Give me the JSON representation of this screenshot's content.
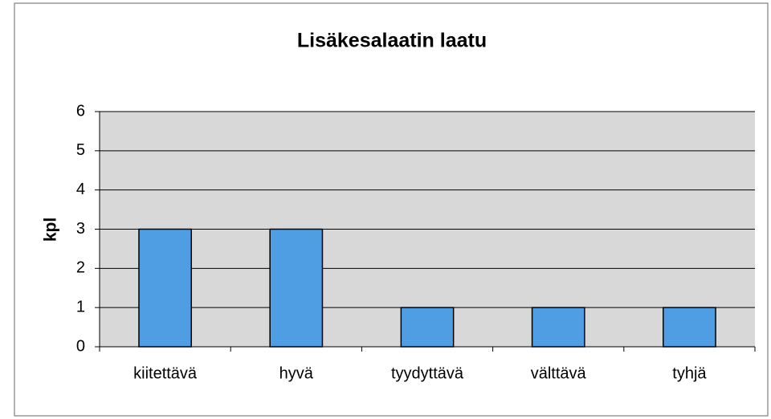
{
  "chart_data": {
    "type": "bar",
    "title": "Lisäkesalaatin laatu",
    "y_label": "kpl",
    "categories": [
      "kiitettävä",
      "hyvä",
      "tyydyttävä",
      "välttävä",
      "tyhjä"
    ],
    "values": [
      3,
      3,
      1,
      1,
      1
    ],
    "color": "#4f9de2",
    "ylim": [
      0,
      6
    ],
    "yticks": [
      0,
      1,
      2,
      3,
      4,
      5,
      6
    ],
    "grid": true
  }
}
